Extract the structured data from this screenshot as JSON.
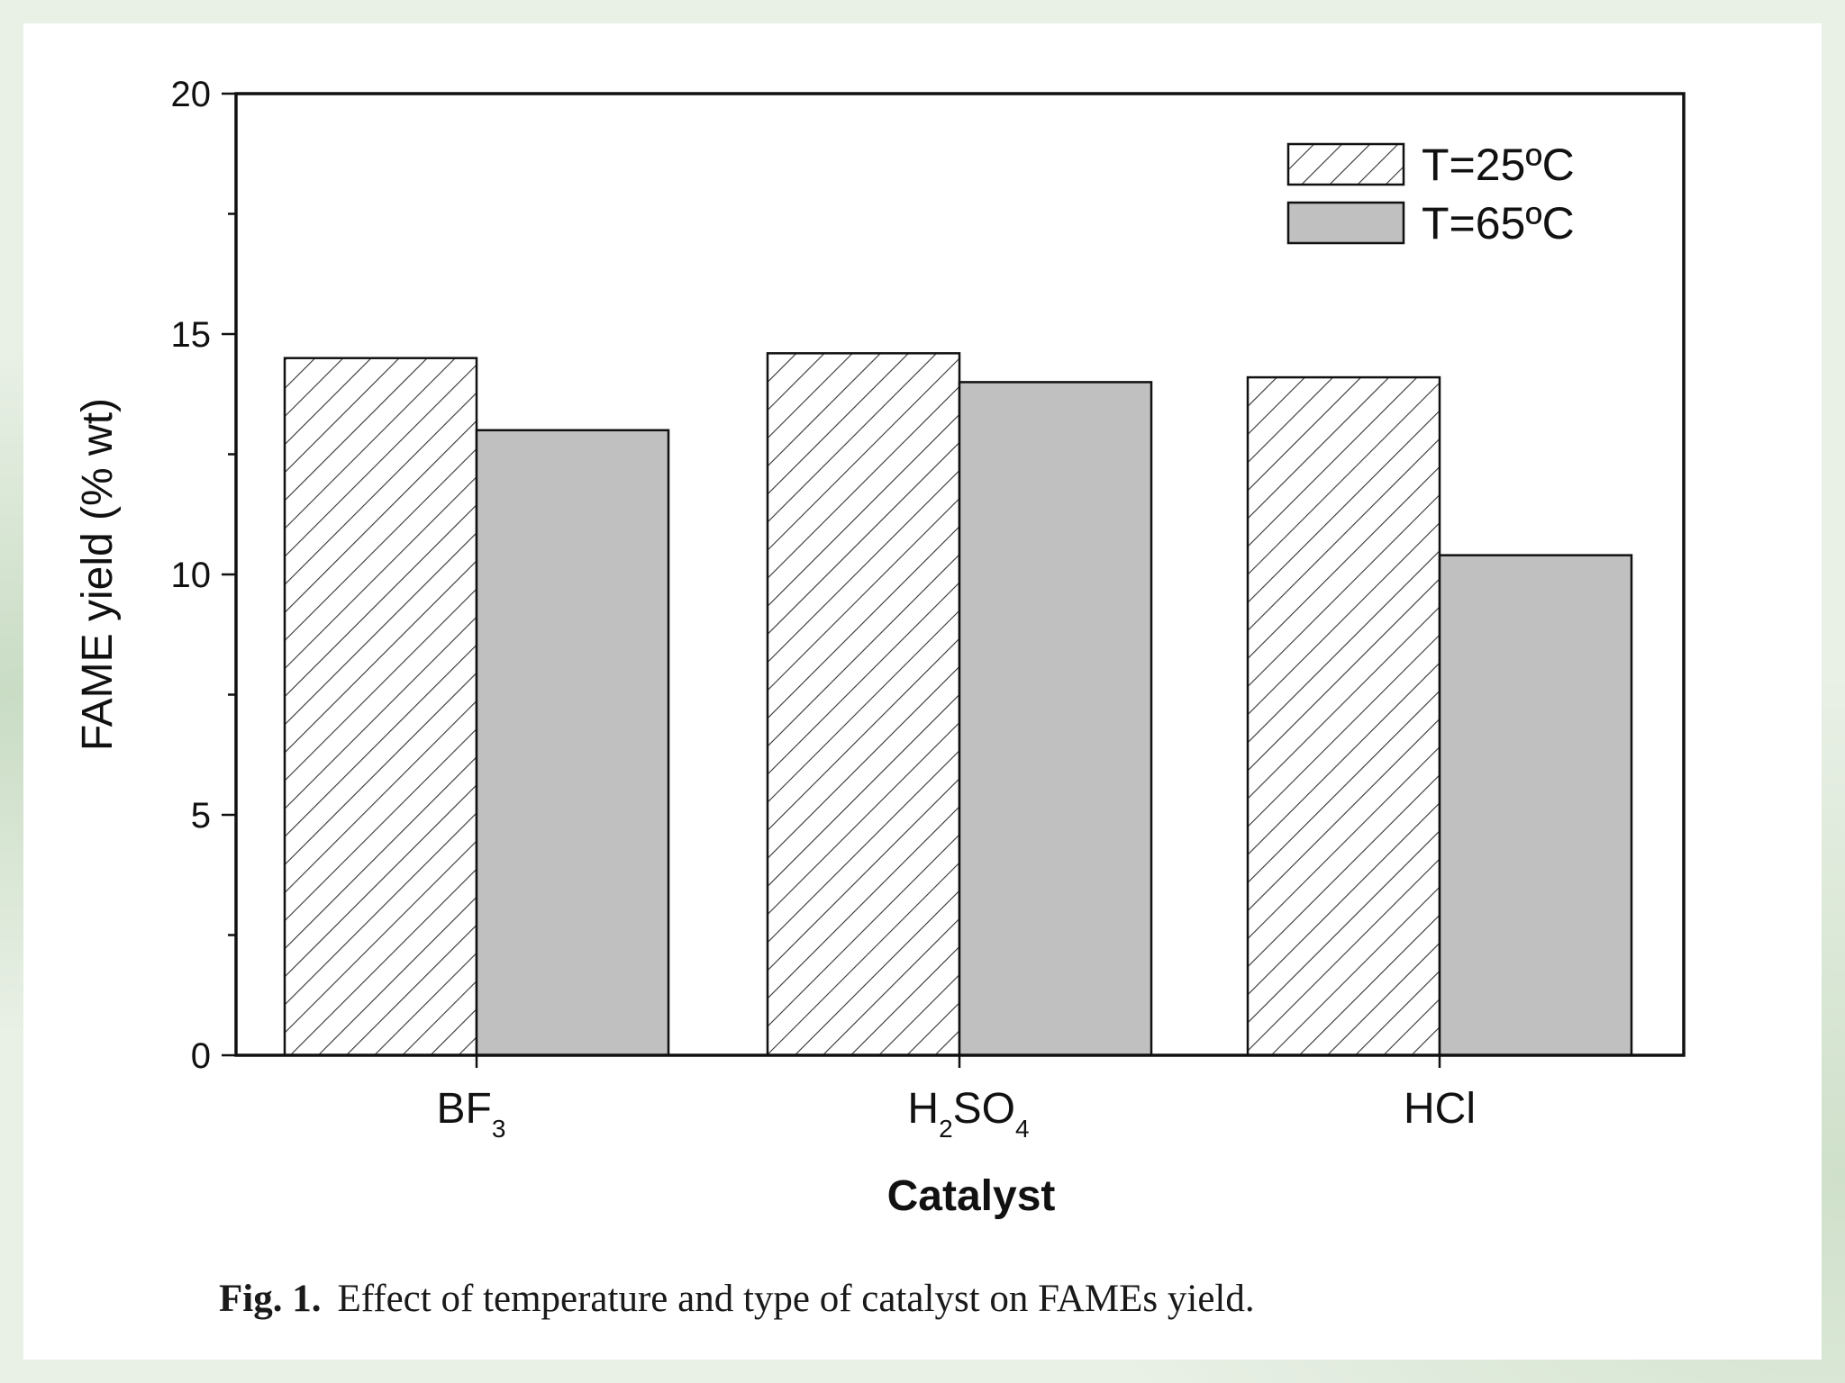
{
  "caption": {
    "label": "Fig. 1.",
    "text": "Effect of temperature and type of catalyst on FAMEs yield."
  },
  "chart_data": {
    "type": "bar",
    "categories": [
      "BF3",
      "H2SO4",
      "HCl"
    ],
    "category_labels": [
      {
        "base": "BF",
        "sub": "3",
        "tail": "",
        "sub2": ""
      },
      {
        "base": "H",
        "sub": "2",
        "tail": "SO",
        "sub2": "4"
      },
      {
        "base": "HCl",
        "sub": "",
        "tail": "",
        "sub2": ""
      }
    ],
    "series": [
      {
        "name": "T=25ºC",
        "values": [
          14.5,
          14.6,
          14.1
        ],
        "fill": "hatched"
      },
      {
        "name": "T=65ºC",
        "values": [
          13.0,
          14.0,
          10.4
        ],
        "fill": "#c0c0c0"
      }
    ],
    "xlabel": "Catalyst",
    "ylabel": "FAME yield (% wt)",
    "ylim": [
      0,
      20
    ],
    "yticks": [
      0,
      5,
      10,
      15,
      20
    ],
    "grid": false,
    "legend_position": "top-right",
    "colors": {
      "bar_fill": "#c0c0c0",
      "hatch_fill": "#ffffff",
      "stroke": "#111111"
    }
  }
}
